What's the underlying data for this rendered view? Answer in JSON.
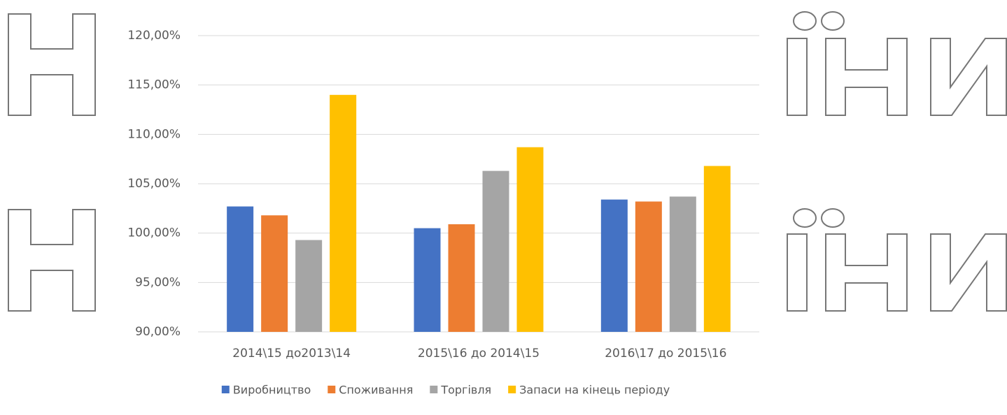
{
  "chart_data": {
    "type": "bar",
    "categories": [
      "2014\\15 до2013\\14",
      "2015\\16 до 2014\\15",
      "2016\\17 до 2015\\16"
    ],
    "series": [
      {
        "name": "Виробництво",
        "color": "#4472c4",
        "values": [
          102.7,
          100.5,
          103.4
        ]
      },
      {
        "name": "Споживання",
        "color": "#ed7d31",
        "values": [
          101.8,
          100.9,
          103.2
        ]
      },
      {
        "name": "Торгівля",
        "color": "#a5a5a5",
        "values": [
          99.3,
          106.3,
          103.7
        ]
      },
      {
        "name": "Запаси на кінець періоду",
        "color": "#ffc000",
        "values": [
          114.0,
          108.7,
          106.8
        ]
      }
    ],
    "ylim": [
      90,
      120
    ],
    "yticks": [
      {
        "value": 90,
        "label": "90,00%"
      },
      {
        "value": 95,
        "label": "95,00%"
      },
      {
        "value": 100,
        "label": "100,00%"
      },
      {
        "value": 105,
        "label": "105,00%"
      },
      {
        "value": 110,
        "label": "110,00%"
      },
      {
        "value": 115,
        "label": "115,00%"
      },
      {
        "value": 120,
        "label": "120,00%"
      }
    ],
    "grid": true,
    "legend": "bottom"
  }
}
